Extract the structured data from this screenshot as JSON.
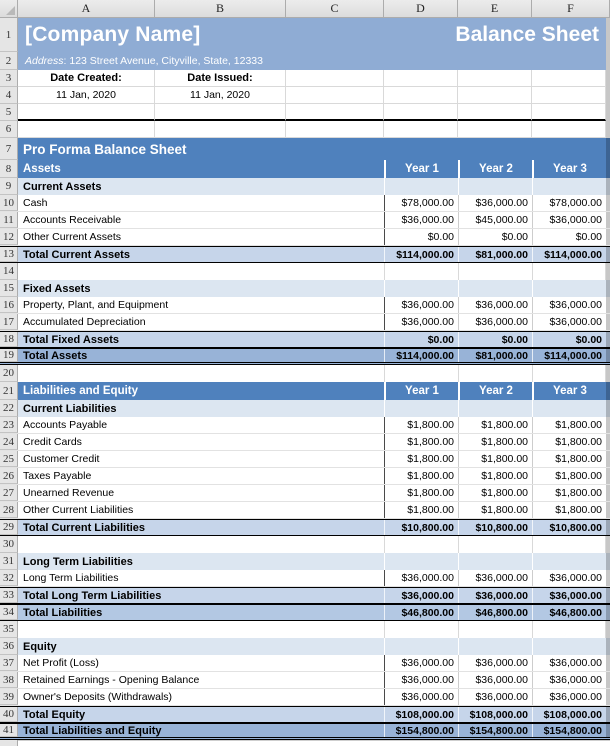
{
  "columns": [
    "A",
    "B",
    "C",
    "D",
    "E",
    "F"
  ],
  "colors": {
    "banner_blue": "#8FACD4",
    "table_header_blue": "#4F81BD",
    "section_fill": "#DCE6F1",
    "subtotal_fill": "#C6D5EA",
    "total_fill": "#B3C8E3",
    "grand_total_fill": "#98B3D7",
    "gridline": "#D9D9D9"
  },
  "top": {
    "row_numbers": [
      "1",
      "2",
      "3",
      "4",
      "5",
      "6"
    ],
    "company_name": "[Company Name]",
    "doc_title": "Balance Sheet",
    "address_label": "Address",
    "address_rest": ": 123 Street Avenue, Cityville, State, 12333",
    "date_created_label": "Date Created:",
    "date_issued_label": "Date Issued:",
    "date_created_value": "11 Jan, 2020",
    "date_issued_value": "11 Jan, 2020"
  },
  "table": {
    "rows": [
      {
        "n": 7,
        "label": "Pro Forma Balance Sheet",
        "values": [],
        "level": "title"
      },
      {
        "n": 8,
        "label": "Assets",
        "values": [
          "Year 1",
          "Year 2",
          "Year 3"
        ],
        "level": "head"
      },
      {
        "n": 9,
        "label": "Current Assets",
        "values": [
          "",
          "",
          ""
        ],
        "level": "section"
      },
      {
        "n": 10,
        "label": "Cash",
        "values": [
          "$78,000.00",
          "$36,000.00",
          "$78,000.00"
        ],
        "level": "item"
      },
      {
        "n": 11,
        "label": "Accounts Receivable",
        "values": [
          "$36,000.00",
          "$45,000.00",
          "$36,000.00"
        ],
        "level": "item"
      },
      {
        "n": 12,
        "label": "Other Current Assets",
        "values": [
          "$0.00",
          "$0.00",
          "$0.00"
        ],
        "level": "item"
      },
      {
        "n": 13,
        "label": "Total Current Assets",
        "values": [
          "$114,000.00",
          "$81,000.00",
          "$114,000.00"
        ],
        "level": "subtotal"
      },
      {
        "n": 14,
        "label": "",
        "values": [
          "",
          "",
          ""
        ],
        "level": "blank"
      },
      {
        "n": 15,
        "label": "Fixed Assets",
        "values": [
          "",
          "",
          ""
        ],
        "level": "section"
      },
      {
        "n": 16,
        "label": "Property, Plant, and Equipment",
        "values": [
          "$36,000.00",
          "$36,000.00",
          "$36,000.00"
        ],
        "level": "item"
      },
      {
        "n": 17,
        "label": "Accumulated Depreciation",
        "values": [
          "$36,000.00",
          "$36,000.00",
          "$36,000.00"
        ],
        "level": "item"
      },
      {
        "n": 18,
        "label": "Total Fixed Assets",
        "values": [
          "$0.00",
          "$0.00",
          "$0.00"
        ],
        "level": "subtotal"
      },
      {
        "n": 19,
        "label": "Total Assets",
        "values": [
          "$114,000.00",
          "$81,000.00",
          "$114,000.00"
        ],
        "level": "grand"
      },
      {
        "n": 20,
        "label": "",
        "values": [
          "",
          "",
          ""
        ],
        "level": "blank"
      },
      {
        "n": 21,
        "label": "Liabilities and Equity",
        "values": [
          "Year 1",
          "Year 2",
          "Year 3"
        ],
        "level": "head"
      },
      {
        "n": 22,
        "label": "Current Liabilities",
        "values": [
          "",
          "",
          ""
        ],
        "level": "section"
      },
      {
        "n": 23,
        "label": "Accounts Payable",
        "values": [
          "$1,800.00",
          "$1,800.00",
          "$1,800.00"
        ],
        "level": "item"
      },
      {
        "n": 24,
        "label": "Credit Cards",
        "values": [
          "$1,800.00",
          "$1,800.00",
          "$1,800.00"
        ],
        "level": "item"
      },
      {
        "n": 25,
        "label": "Customer Credit",
        "values": [
          "$1,800.00",
          "$1,800.00",
          "$1,800.00"
        ],
        "level": "item"
      },
      {
        "n": 26,
        "label": "Taxes Payable",
        "values": [
          "$1,800.00",
          "$1,800.00",
          "$1,800.00"
        ],
        "level": "item"
      },
      {
        "n": 27,
        "label": "Unearned Revenue",
        "values": [
          "$1,800.00",
          "$1,800.00",
          "$1,800.00"
        ],
        "level": "item"
      },
      {
        "n": 28,
        "label": "Other Current Liabilities",
        "values": [
          "$1,800.00",
          "$1,800.00",
          "$1,800.00"
        ],
        "level": "item"
      },
      {
        "n": 29,
        "label": "Total Current Liabilities",
        "values": [
          "$10,800.00",
          "$10,800.00",
          "$10,800.00"
        ],
        "level": "subtotal"
      },
      {
        "n": 30,
        "label": "",
        "values": [
          "",
          "",
          ""
        ],
        "level": "blank"
      },
      {
        "n": 31,
        "label": "Long Term Liabilities",
        "values": [
          "",
          "",
          ""
        ],
        "level": "section"
      },
      {
        "n": 32,
        "label": "Long Term Liabilities",
        "values": [
          "$36,000.00",
          "$36,000.00",
          "$36,000.00"
        ],
        "level": "item"
      },
      {
        "n": 33,
        "label": "Total Long Term Liabilities",
        "values": [
          "$36,000.00",
          "$36,000.00",
          "$36,000.00"
        ],
        "level": "subtotal"
      },
      {
        "n": 34,
        "label": "Total Liabilities",
        "values": [
          "$46,800.00",
          "$46,800.00",
          "$46,800.00"
        ],
        "level": "total"
      },
      {
        "n": 35,
        "label": "",
        "values": [
          "",
          "",
          ""
        ],
        "level": "blank"
      },
      {
        "n": 36,
        "label": "Equity",
        "values": [
          "",
          "",
          ""
        ],
        "level": "section"
      },
      {
        "n": 37,
        "label": "Net Profit (Loss)",
        "values": [
          "$36,000.00",
          "$36,000.00",
          "$36,000.00"
        ],
        "level": "item"
      },
      {
        "n": 38,
        "label": "Retained Earnings - Opening Balance",
        "values": [
          "$36,000.00",
          "$36,000.00",
          "$36,000.00"
        ],
        "level": "item"
      },
      {
        "n": 39,
        "label": "Owner's Deposits (Withdrawals)",
        "values": [
          "$36,000.00",
          "$36,000.00",
          "$36,000.00"
        ],
        "level": "item"
      },
      {
        "n": 40,
        "label": "Total Equity",
        "values": [
          "$108,000.00",
          "$108,000.00",
          "$108,000.00"
        ],
        "level": "subtotal"
      },
      {
        "n": 41,
        "label": "Total Liabilities and Equity",
        "values": [
          "$154,800.00",
          "$154,800.00",
          "$154,800.00"
        ],
        "level": "grand"
      }
    ]
  }
}
